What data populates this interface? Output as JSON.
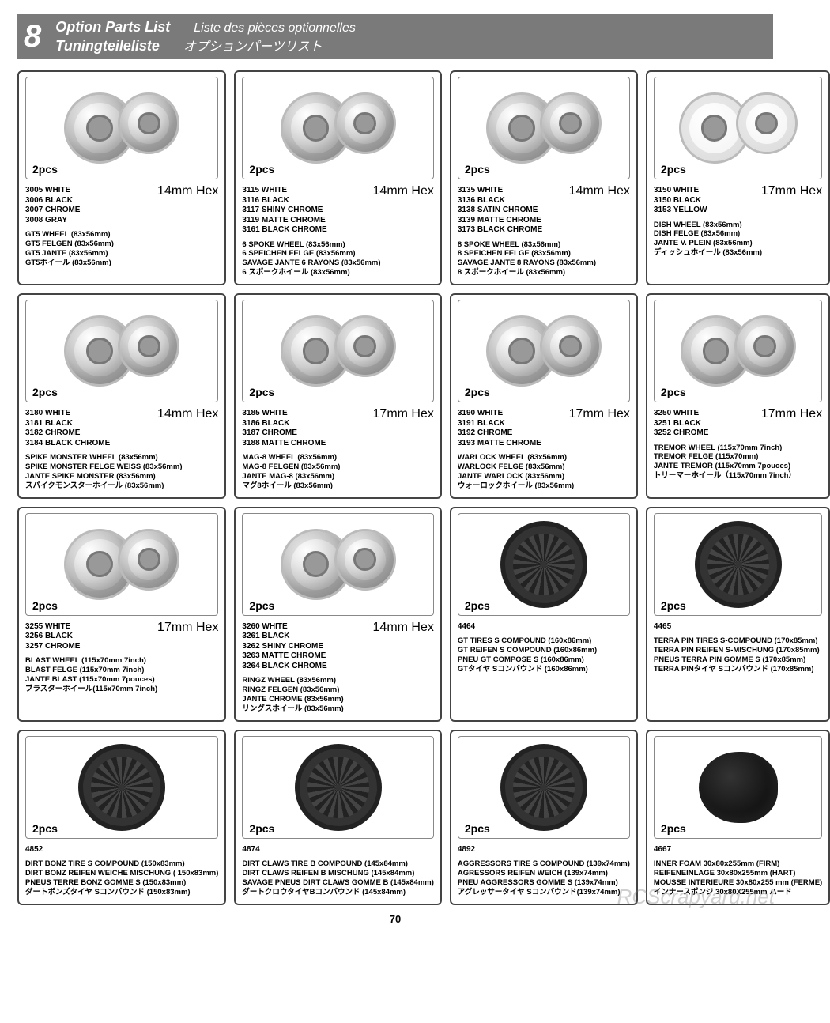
{
  "page_number": "70",
  "watermark": "RCScrapyard.net",
  "header": {
    "number": "8",
    "title_en": "Option Parts List",
    "title_de": "Tuningteileliste",
    "title_fr": "Liste des pièces optionnelles",
    "title_jp": "オプションパーツリスト"
  },
  "cards": [
    {
      "pcs": "2pcs",
      "hex": "14mm Hex",
      "kind": "wheel",
      "variants": [
        "3005 WHITE",
        "3006 BLACK",
        "3007 CHROME",
        "3008 GRAY"
      ],
      "names": [
        "GT5 WHEEL (83x56mm)",
        "GT5 FELGEN (83x56mm)",
        "GT5 JANTE (83x56mm)",
        "GT5ホイール (83x56mm)"
      ]
    },
    {
      "pcs": "2pcs",
      "hex": "14mm Hex",
      "kind": "wheel",
      "variants": [
        "3115 WHITE",
        "3116 BLACK",
        "3117 SHINY CHROME",
        "3119 MATTE CHROME",
        "3161 BLACK CHROME"
      ],
      "names": [
        "6 SPOKE WHEEL (83x56mm)",
        "6 SPEICHEN FELGE (83x56mm)",
        "SAVAGE JANTE 6 RAYONS (83x56mm)",
        "6 スポークホイール (83x56mm)"
      ]
    },
    {
      "pcs": "2pcs",
      "hex": "14mm Hex",
      "kind": "wheel",
      "variants": [
        "3135 WHITE",
        "3136 BLACK",
        "3138 SATIN CHROME",
        "3139 MATTE CHROME",
        "3173 BLACK CHROME"
      ],
      "names": [
        "8 SPOKE WHEEL (83x56mm)",
        "8 SPEICHEN FELGE (83x56mm)",
        "SAVAGE JANTE 8 RAYONS (83x56mm)",
        "8 スポークホイール (83x56mm)"
      ]
    },
    {
      "pcs": "2pcs",
      "hex": "17mm Hex",
      "kind": "dish",
      "variants": [
        "3150 WHITE",
        "3150 BLACK",
        "3153 YELLOW"
      ],
      "names": [
        "DISH WHEEL (83x56mm)",
        "DISH FELGE (83x56mm)",
        "JANTE V. PLEIN (83x56mm)",
        "ディッシュホイール (83x56mm)"
      ]
    },
    {
      "pcs": "2pcs",
      "hex": "14mm Hex",
      "kind": "wheel",
      "variants": [
        "3180 WHITE",
        "3181 BLACK",
        "3182 CHROME",
        "3184 BLACK CHROME"
      ],
      "names": [
        "SPIKE MONSTER WHEEL (83x56mm)",
        "SPIKE MONSTER FELGE WEISS (83x56mm)",
        "JANTE SPIKE MONSTER (83x56mm)",
        "スパイクモンスターホイール (83x56mm)"
      ]
    },
    {
      "pcs": "2pcs",
      "hex": "17mm Hex",
      "kind": "wheel",
      "variants": [
        "3185 WHITE",
        "3186 BLACK",
        "3187 CHROME",
        "3188 MATTE CHROME"
      ],
      "names": [
        "MAG-8 WHEEL (83x56mm)",
        "MAG-8 FELGEN (83x56mm)",
        "JANTE MAG-8 (83x56mm)",
        "マグ8ホイール (83x56mm)"
      ]
    },
    {
      "pcs": "2pcs",
      "hex": "17mm Hex",
      "kind": "wheel",
      "variants": [
        "3190 WHITE",
        "3191 BLACK",
        "3192 CHROME",
        "3193 MATTE CHROME"
      ],
      "names": [
        "WARLOCK WHEEL (83x56mm)",
        "WARLOCK FELGE (83x56mm)",
        "JANTE WARLOCK (83x56mm)",
        "ウォーロックホイール (83x56mm)"
      ]
    },
    {
      "pcs": "2pcs",
      "hex": "17mm Hex",
      "kind": "wheel",
      "variants": [
        "3250 WHITE",
        "3251 BLACK",
        "3252 CHROME"
      ],
      "names": [
        "TREMOR WHEEL (115x70mm 7inch)",
        "TREMOR FELGE (115x70mm)",
        "JANTE TREMOR (115x70mm 7pouces)",
        "トリーマーホイール（115x70mm 7inch）"
      ]
    },
    {
      "pcs": "2pcs",
      "hex": "17mm Hex",
      "kind": "wheel",
      "variants": [
        "3255 WHITE",
        "3256 BLACK",
        "3257 CHROME"
      ],
      "names": [
        "BLAST WHEEL (115x70mm 7inch)",
        "BLAST FELGE (115x70mm 7inch)",
        "JANTE BLAST (115x70mm 7pouces)",
        "ブラスターホイール(115x70mm 7inch)"
      ]
    },
    {
      "pcs": "2pcs",
      "hex": "14mm Hex",
      "kind": "wheel",
      "variants": [
        "3260 WHITE",
        "3261 BLACK",
        "3262 SHINY CHROME",
        "3263 MATTE CHROME",
        "3264 BLACK CHROME"
      ],
      "names": [
        "RINGZ WHEEL (83x56mm)",
        "RINGZ FELGEN (83x56mm)",
        "JANTE CHROME (83x56mm)",
        "リングスホイール (83x56mm)"
      ]
    },
    {
      "pcs": "2pcs",
      "hex": "",
      "kind": "tire",
      "variants": [
        "4464"
      ],
      "names": [
        "GT TIRES S COMPOUND (160x86mm)",
        "GT REIFEN S COMPOUND (160x86mm)",
        "PNEU GT COMPOSE S (160x86mm)",
        "GTタイヤ Sコンパウンド (160x86mm)"
      ]
    },
    {
      "pcs": "2pcs",
      "hex": "",
      "kind": "tire",
      "variants": [
        "4465"
      ],
      "names": [
        "TERRA PIN TIRES S-COMPOUND (170x85mm)",
        "TERRA PIN REIFEN S-MISCHUNG (170x85mm)",
        "PNEUS TERRA PIN GOMME S (170x85mm)",
        "TERRA PINタイヤ Sコンパウンド (170x85mm)"
      ]
    },
    {
      "pcs": "2pcs",
      "hex": "",
      "kind": "tire",
      "variants": [
        "4852"
      ],
      "names": [
        "DIRT BONZ TIRE S COMPOUND (150x83mm)",
        "DIRT BONZ REIFEN WEICHE MISCHUNG ( 150x83mm)",
        "PNEUS TERRE BONZ GOMME S (150x83mm)",
        "ダートボンズタイヤ Sコンパウンド (150x83mm)"
      ]
    },
    {
      "pcs": "2pcs",
      "hex": "",
      "kind": "tire",
      "variants": [
        "4874"
      ],
      "names": [
        "DIRT CLAWS TIRE B COMPOUND (145x84mm)",
        "DIRT CLAWS REIFEN B MISCHUNG (145x84mm)",
        "SAVAGE PNEUS DIRT CLAWS GOMME B (145x84mm)",
        "ダートクロウタイヤBコンパウンド (145x84mm)"
      ]
    },
    {
      "pcs": "2pcs",
      "hex": "",
      "kind": "tire",
      "variants": [
        "4892"
      ],
      "names": [
        "AGGRESSORS TIRE S COMPOUND (139x74mm)",
        "AGRESSORS REIFEN WEICH (139x74mm)",
        "PNEU AGGRESSORS GOMME S (139x74mm)",
        "アグレッサータイヤ Sコンパウンド(139x74mm)"
      ]
    },
    {
      "pcs": "2pcs",
      "hex": "",
      "kind": "foam",
      "variants": [
        "4667"
      ],
      "names": [
        "INNER FOAM 30x80x255mm (FIRM)",
        "REIFENEINLAGE 30x80x255mm (HART)",
        "MOUSSE INTERIEURE 30x80x255 mm (FERME)",
        "インナースポンジ 30x80X255mm ハード"
      ]
    }
  ]
}
